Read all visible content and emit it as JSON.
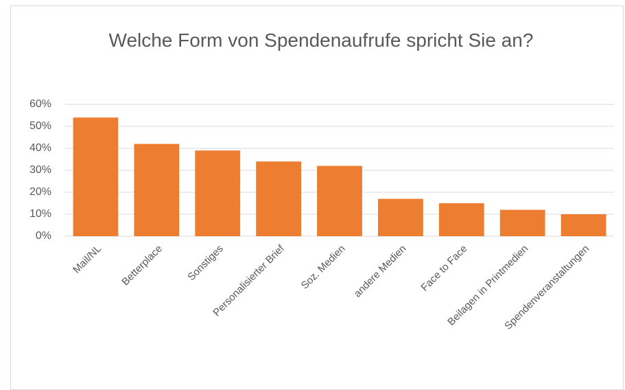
{
  "chart_data": {
    "type": "bar",
    "title": "Welche Form von Spendenaufrufe spricht Sie an?",
    "categories": [
      "Mail/NL",
      "Betterplace",
      "Sonstiges",
      "Personalisierter Brief",
      "Soz. Medien",
      "andere Medien",
      "Face to Face",
      "Beilagen in Printmedien",
      "Spendenveranstaltungen"
    ],
    "values": [
      54,
      42,
      39,
      34,
      32,
      17,
      15,
      12,
      10
    ],
    "color": "#ed7d31",
    "ylim": [
      0,
      60
    ],
    "yticks": [
      {
        "value": 0,
        "label": "0%"
      },
      {
        "value": 10,
        "label": "10%"
      },
      {
        "value": 20,
        "label": "20%"
      },
      {
        "value": 30,
        "label": "30%"
      },
      {
        "value": 40,
        "label": "40%"
      },
      {
        "value": 50,
        "label": "50%"
      },
      {
        "value": 60,
        "label": "60%"
      }
    ],
    "grid": true
  }
}
